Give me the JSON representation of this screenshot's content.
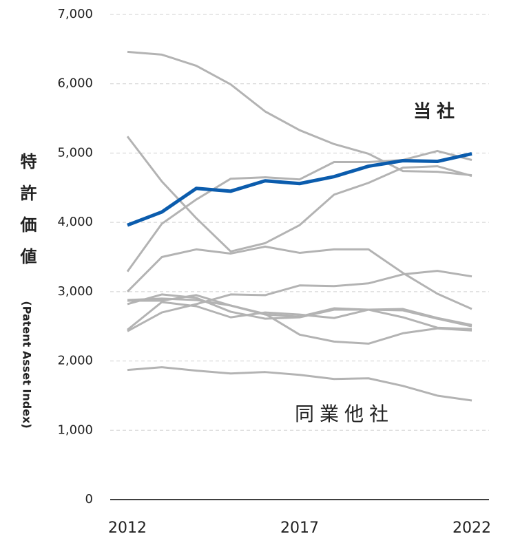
{
  "chart_data": {
    "type": "line",
    "y_label": "特許価値",
    "y_label_sub": "(Patent Asset Index)",
    "annotations": [
      {
        "text": "当社",
        "color": "#0b5cad"
      },
      {
        "text": "同業他社",
        "color": "#a6a6a6"
      }
    ],
    "x": [
      2012,
      2013,
      2014,
      2015,
      2016,
      2017,
      2018,
      2019,
      2020,
      2021,
      2022
    ],
    "xlim": [
      2012,
      2022
    ],
    "xticks": [
      2012,
      2017,
      2022
    ],
    "ylim": [
      0,
      7000
    ],
    "yticks": [
      0,
      {
        "value": 1000,
        "label": "1,000"
      },
      {
        "value": 2000,
        "label": "2,000"
      },
      {
        "value": 3000,
        "label": "3,000"
      },
      {
        "value": 4000,
        "label": "4,000"
      },
      {
        "value": 5000,
        "label": "5,000"
      },
      {
        "value": 6000,
        "label": "6,000"
      },
      {
        "value": 7000,
        "label": "7,000"
      }
    ],
    "grid": true,
    "series": [
      {
        "color": "#b3b3b3",
        "values": [
          6460,
          6420,
          6260,
          5990,
          5600,
          5330,
          5130,
          4990,
          4740,
          4730,
          4680
        ]
      },
      {
        "color": "#b3b3b3",
        "values": [
          5240,
          4590,
          4060,
          3580,
          3700,
          3960,
          4400,
          4570,
          4790,
          4810,
          4670
        ]
      },
      {
        "color": "#b3b3b3",
        "values": [
          3290,
          3980,
          4330,
          4630,
          4650,
          4620,
          4870,
          4870,
          4900,
          5030,
          4900
        ]
      },
      {
        "color": "#b3b3b3",
        "values": [
          3000,
          3500,
          3610,
          3550,
          3650,
          3560,
          3610,
          3610,
          3270,
          2970,
          2750
        ]
      },
      {
        "color": "#b3b3b3",
        "values": [
          2870,
          2870,
          2950,
          2800,
          2670,
          2640,
          2760,
          2740,
          2750,
          2620,
          2520
        ]
      },
      {
        "color": "#b3b3b3",
        "values": [
          2820,
          2960,
          2910,
          2710,
          2610,
          2630,
          2740,
          2740,
          2730,
          2610,
          2500
        ]
      },
      {
        "color": "#b3b3b3",
        "values": [
          2450,
          2850,
          2790,
          2630,
          2700,
          2670,
          2620,
          2740,
          2630,
          2480,
          2460
        ]
      },
      {
        "color": "#b3b3b3",
        "values": [
          2430,
          2700,
          2820,
          2960,
          2950,
          3090,
          3080,
          3120,
          3250,
          3300,
          3220
        ]
      },
      {
        "color": "#b3b3b3",
        "values": [
          2880,
          2900,
          2880,
          2800,
          2680,
          2380,
          2280,
          2250,
          2400,
          2470,
          2440
        ]
      },
      {
        "color": "#b3b3b3",
        "values": [
          1870,
          1910,
          1860,
          1820,
          1840,
          1800,
          1740,
          1750,
          1640,
          1500,
          1430
        ]
      },
      {
        "color": "#0b5cad",
        "width": 5,
        "values": [
          3960,
          4150,
          4490,
          4450,
          4600,
          4560,
          4660,
          4810,
          4890,
          4880,
          4990
        ]
      }
    ]
  }
}
